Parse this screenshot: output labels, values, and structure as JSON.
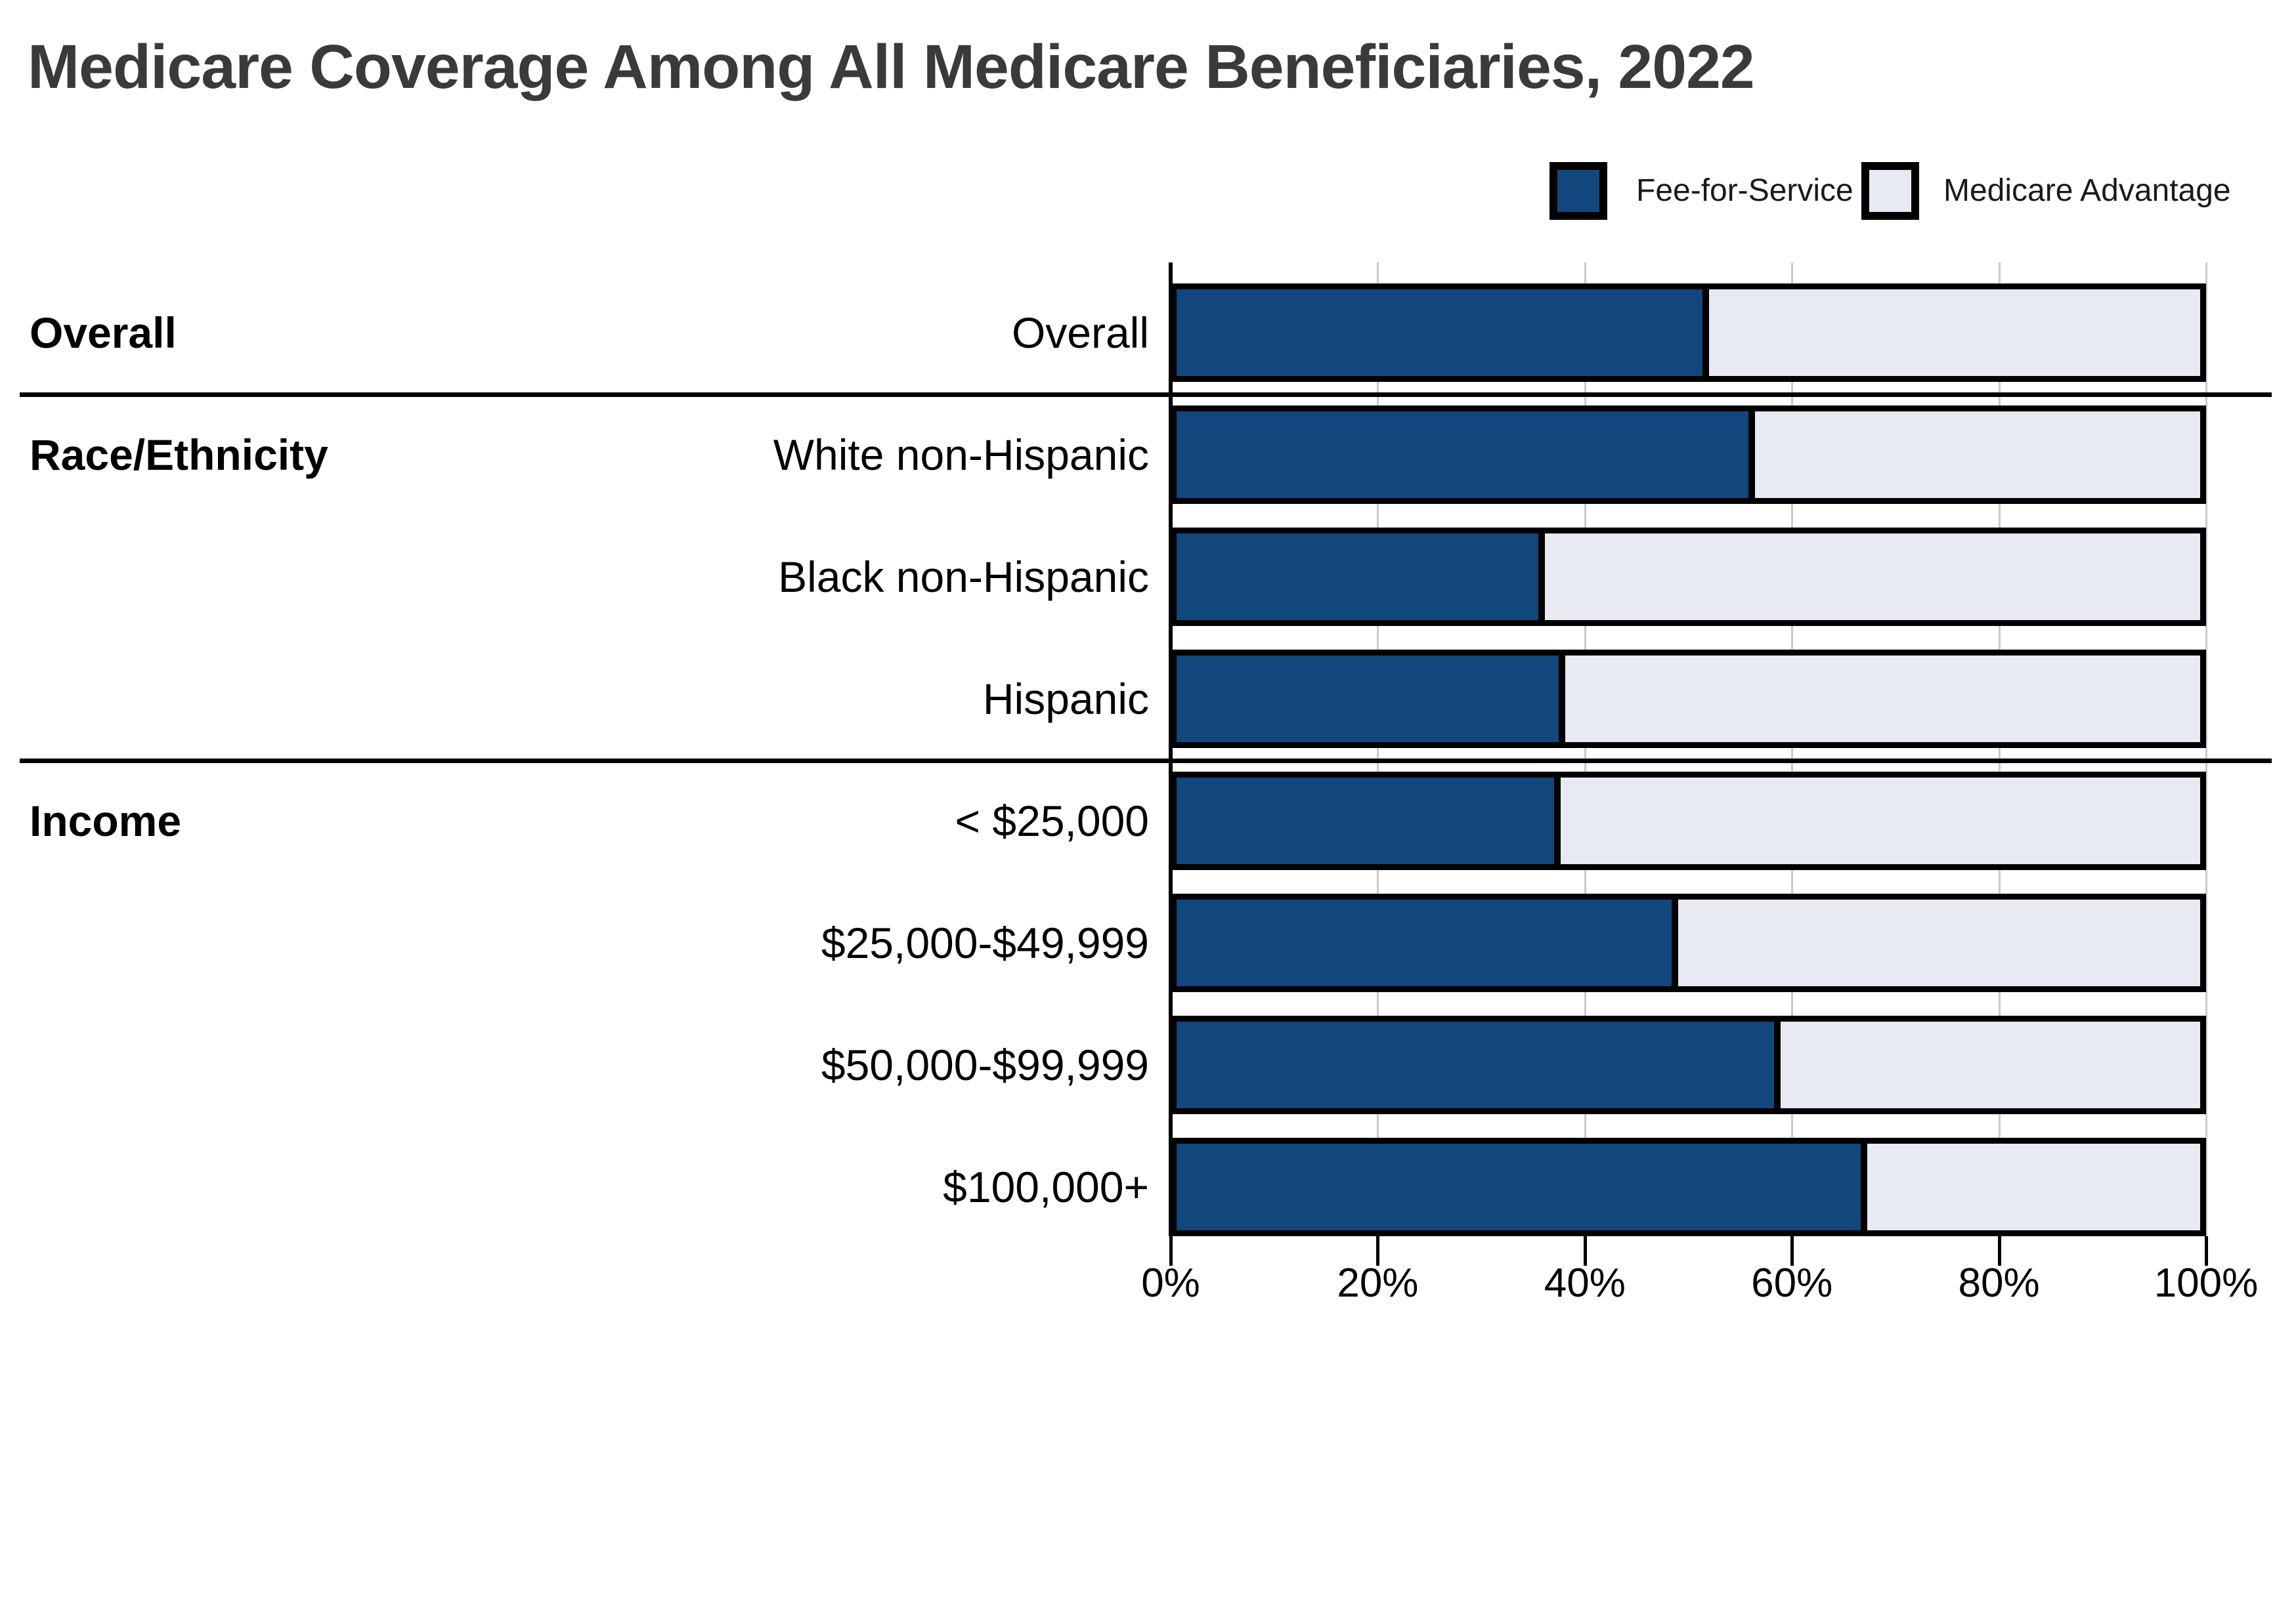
{
  "title": "Medicare Coverage Among All Medicare Beneficiaries, 2022",
  "colors": {
    "fee_for_service": "#12477E",
    "medicare_advantage": "#E7EAF2",
    "bar_border": "#000000",
    "gridline": "#c9c9c9",
    "title_text": "#3a3a3a"
  },
  "chart_data": {
    "type": "bar",
    "orientation": "horizontal",
    "stacked": true,
    "title": "Medicare Coverage Among All Medicare Beneficiaries, 2022",
    "xlabel": "",
    "ylabel": "",
    "xlim": [
      0,
      100
    ],
    "x_ticks": [
      "0%",
      "20%",
      "40%",
      "60%",
      "80%",
      "100%"
    ],
    "grid": true,
    "legend_position": "top-right",
    "groups": [
      {
        "label": "Overall",
        "categories": [
          "Overall"
        ]
      },
      {
        "label": "Race/Ethnicity",
        "categories": [
          "White non-Hispanic",
          "Black non-Hispanic",
          "Hispanic"
        ]
      },
      {
        "label": "Income",
        "categories": [
          "< $25,000",
          "$25,000-$49,999",
          "$50,000-$99,999",
          "$100,000+"
        ]
      }
    ],
    "categories": [
      "Overall",
      "White non-Hispanic",
      "Black non-Hispanic",
      "Hispanic",
      "< $25,000",
      "$25,000-$49,999",
      "$50,000-$99,999",
      "$100,000+"
    ],
    "series": [
      {
        "name": "Fee-for-Service",
        "color": "#12477E",
        "values": [
          52,
          56.5,
          36,
          38,
          37.5,
          49,
          59,
          67.5
        ]
      },
      {
        "name": "Medicare Advantage",
        "color": "#E7EAF2",
        "values": [
          48,
          43.5,
          64,
          62,
          62.5,
          51,
          41,
          32.5
        ]
      }
    ]
  }
}
